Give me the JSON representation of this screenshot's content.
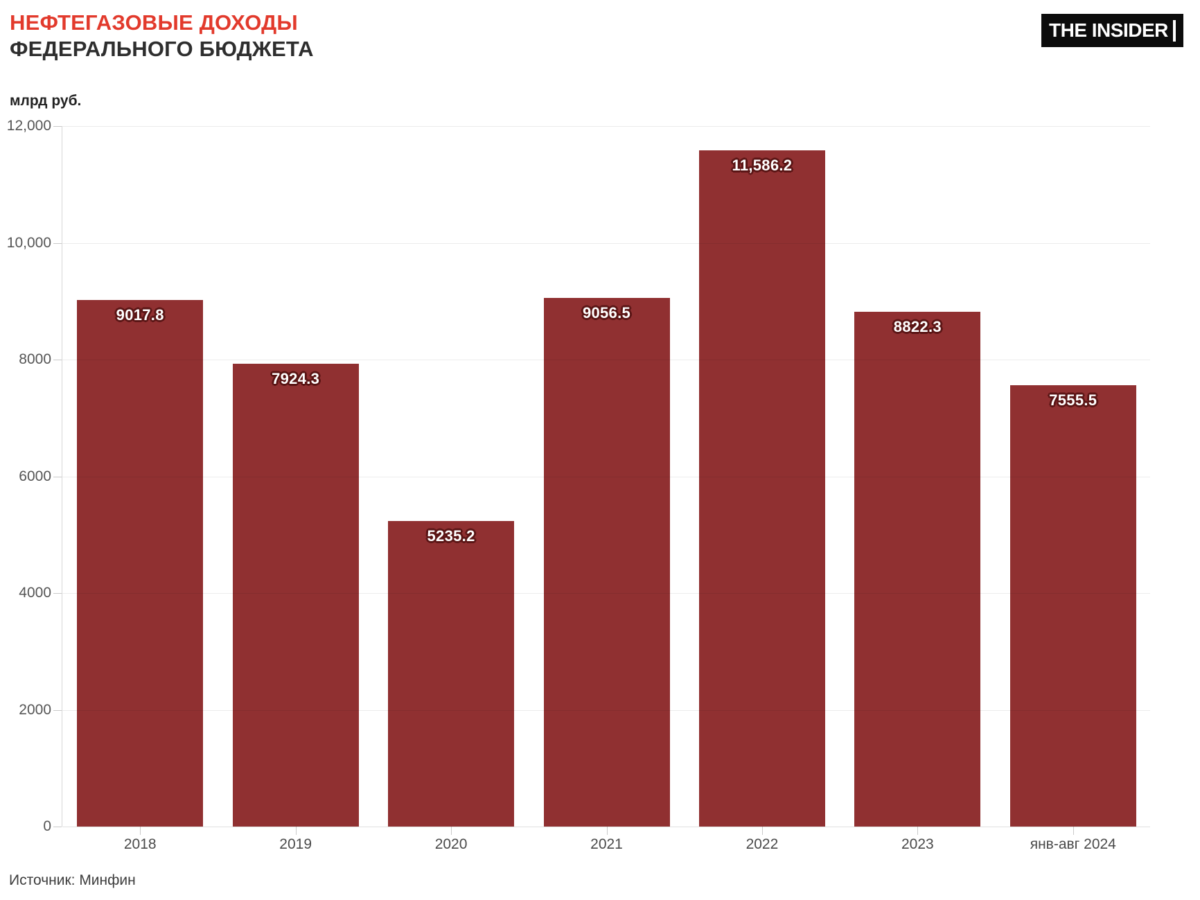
{
  "header": {
    "title_line1": "НЕФТЕГАЗОВЫЕ ДОХОДЫ",
    "title_line2": "ФЕДЕРАЛЬНОГО БЮДЖЕТА",
    "units_label": "млрд руб.",
    "logo_text": "THE INSIDER"
  },
  "footer": {
    "source": "Источник: Минфин"
  },
  "colors": {
    "bar": "#903031",
    "value_label_text": "#ffffff",
    "value_label_outline": "#5a1515",
    "title_accent": "#e23a2c",
    "title_dark": "#2e2e2e",
    "axis_text": "#555555",
    "logo_bg": "#0c0c0c",
    "logo_text": "#ffffff"
  },
  "chart_data": {
    "type": "bar",
    "title": "НЕФТЕГАЗОВЫЕ ДОХОДЫ ФЕДЕРАЛЬНОГО БЮДЖЕТА",
    "subtitle_units": "млрд руб.",
    "categories": [
      "2018",
      "2019",
      "2020",
      "2021",
      "2022",
      "2023",
      "янв-авг 2024"
    ],
    "values": [
      9017.8,
      7924.3,
      5235.2,
      9056.5,
      11586.2,
      8822.3,
      7555.5
    ],
    "value_labels": [
      "9017.8",
      "7924.3",
      "5235.2",
      "9056.5",
      "11,586.2",
      "8822.3",
      "7555.5"
    ],
    "xlabel": "",
    "ylabel": "млрд руб.",
    "ylim": [
      0,
      12000
    ],
    "ytick_interval": 2000,
    "ytick_values": [
      0,
      2000,
      4000,
      6000,
      8000,
      10000,
      12000
    ],
    "ytick_labels": [
      "0",
      "2000",
      "4000",
      "6000",
      "8000",
      "10,000",
      "12,000"
    ],
    "grid": true,
    "legend": false,
    "source": "Источник: Минфин"
  }
}
